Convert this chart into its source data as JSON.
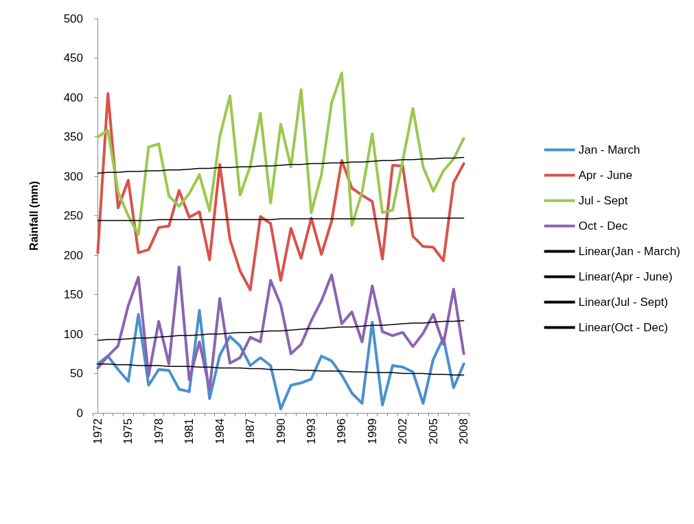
{
  "chart_data": {
    "type": "line",
    "ylabel": "Rainfall (mm)",
    "categories": [
      "1972",
      null,
      null,
      "1975",
      null,
      null,
      "1978",
      null,
      null,
      "1981",
      null,
      null,
      "1984",
      null,
      null,
      "1987",
      null,
      null,
      "1990",
      null,
      null,
      "1993",
      null,
      null,
      "1996",
      null,
      null,
      "1999",
      null,
      null,
      "2002",
      null,
      null,
      "2005",
      null,
      null,
      "2008"
    ],
    "series": [
      {
        "name": "Jan - March",
        "color": "#4a90d0",
        "values": [
          62,
          72,
          55,
          40,
          125,
          35,
          55,
          54,
          30,
          27,
          130,
          18,
          73,
          97,
          85,
          60,
          70,
          60,
          5,
          35,
          38,
          43,
          72,
          66,
          48,
          25,
          12,
          115,
          10,
          60,
          58,
          52,
          12,
          68,
          95,
          32,
          62
        ]
      },
      {
        "name": "Apr - June",
        "color": "#d9534a",
        "values": [
          203,
          405,
          260,
          295,
          203,
          207,
          235,
          237,
          282,
          248,
          255,
          194,
          315,
          220,
          180,
          156,
          249,
          240,
          168,
          234,
          196,
          247,
          201,
          243,
          320,
          285,
          276,
          268,
          195,
          314,
          313,
          224,
          211,
          210,
          193,
          292,
          316
        ]
      },
      {
        "name": "Jul - Sept",
        "color": "#9bc850",
        "values": [
          350,
          358,
          280,
          250,
          226,
          337,
          341,
          275,
          262,
          278,
          302,
          256,
          350,
          402,
          276,
          313,
          380,
          266,
          366,
          312,
          410,
          254,
          302,
          393,
          431,
          238,
          280,
          354,
          254,
          257,
          320,
          386,
          312,
          281,
          307,
          322,
          348
        ]
      },
      {
        "name": "Oct - Dec",
        "color": "#8a64b0",
        "values": [
          57,
          72,
          85,
          136,
          172,
          47,
          116,
          62,
          185,
          42,
          90,
          30,
          145,
          63,
          70,
          96,
          90,
          168,
          137,
          75,
          87,
          117,
          142,
          175,
          113,
          128,
          90,
          161,
          103,
          98,
          102,
          84,
          101,
          125,
          87,
          157,
          75
        ]
      },
      {
        "name": "Linear(Jan - March)",
        "color": "#000000",
        "values": [
          62,
          62,
          61,
          61,
          60,
          60,
          60,
          59,
          59,
          59,
          58,
          58,
          57,
          57,
          57,
          56,
          56,
          55,
          55,
          55,
          54,
          54,
          53,
          53,
          53,
          52,
          52,
          51,
          51,
          51,
          50,
          50,
          50,
          49,
          49,
          48,
          48
        ]
      },
      {
        "name": "Linear(Apr - June)",
        "color": "#000000",
        "values": [
          244,
          244,
          244,
          244,
          244,
          244,
          245,
          245,
          245,
          245,
          245,
          245,
          245,
          245,
          245,
          245,
          245,
          245,
          246,
          246,
          246,
          246,
          246,
          246,
          246,
          246,
          246,
          246,
          246,
          246,
          247,
          247,
          247,
          247,
          247,
          247,
          247
        ]
      },
      {
        "name": "Linear(Jul - Sept)",
        "color": "#000000",
        "values": [
          304,
          305,
          305,
          306,
          306,
          307,
          307,
          308,
          308,
          309,
          310,
          310,
          311,
          311,
          312,
          312,
          313,
          313,
          314,
          315,
          315,
          316,
          316,
          317,
          317,
          318,
          318,
          319,
          320,
          320,
          321,
          321,
          322,
          322,
          323,
          323,
          324
        ]
      },
      {
        "name": "Linear(Oct - Dec)",
        "color": "#000000",
        "values": [
          92,
          93,
          93,
          94,
          95,
          95,
          96,
          97,
          98,
          98,
          99,
          100,
          100,
          101,
          102,
          102,
          103,
          104,
          104,
          105,
          106,
          107,
          107,
          108,
          109,
          109,
          110,
          111,
          111,
          112,
          113,
          114,
          114,
          115,
          116,
          116,
          117
        ]
      }
    ],
    "ylim": [
      0,
      500
    ],
    "yticks": [
      0,
      50,
      100,
      150,
      200,
      250,
      300,
      350,
      400,
      450,
      500
    ],
    "grid": false,
    "legend": "right",
    "marker": "none",
    "line_style": "solid"
  }
}
